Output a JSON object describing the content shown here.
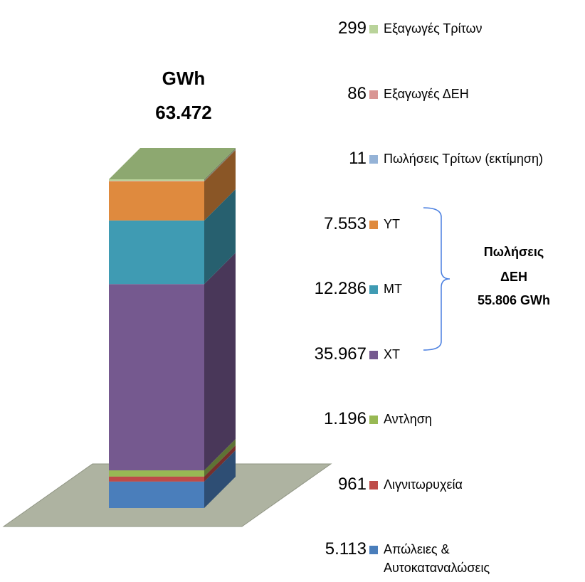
{
  "chart_data": {
    "type": "stacked_bar_3d",
    "title": "GWh",
    "total": 63472,
    "total_label": "63.472",
    "categories": [
      null
    ],
    "series": [
      {
        "name": "Απώλειες & Αυτοκαταναλώσεις",
        "color": "#4a7ebb",
        "values": [
          5113
        ],
        "value_labels": [
          "5.113"
        ]
      },
      {
        "name": "Λιγνιτωρυχεία",
        "color": "#be4b48",
        "values": [
          961
        ],
        "value_labels": [
          "961"
        ]
      },
      {
        "name": "Αντληση",
        "color": "#98b954",
        "values": [
          1196
        ],
        "value_labels": [
          "1.196"
        ]
      },
      {
        "name": "ΧΤ",
        "color": "#75598f",
        "values": [
          35967
        ],
        "value_labels": [
          "35.967"
        ]
      },
      {
        "name": "ΜΤ",
        "color": "#3f9bb3",
        "values": [
          12286
        ],
        "value_labels": [
          "12.286"
        ]
      },
      {
        "name": "ΥΤ",
        "color": "#df8a3e",
        "values": [
          7553
        ],
        "value_labels": [
          "7.553"
        ]
      },
      {
        "name": "Πωλήσεις Τρίτων (εκτίμηση)",
        "color": "#95b3d7",
        "values": [
          11
        ],
        "value_labels": [
          "11"
        ]
      },
      {
        "name": "Εξαγωγές ΔΕΗ",
        "color": "#d99694",
        "values": [
          86
        ],
        "value_labels": [
          "86"
        ]
      },
      {
        "name": "Εξαγωγές Τρίτων",
        "color": "#b9d39a",
        "values": [
          299
        ],
        "value_labels": [
          "299"
        ]
      }
    ],
    "annotation": [
      "Πωλήσεις",
      "ΔΕΗ",
      "55.806 GWh"
    ]
  }
}
